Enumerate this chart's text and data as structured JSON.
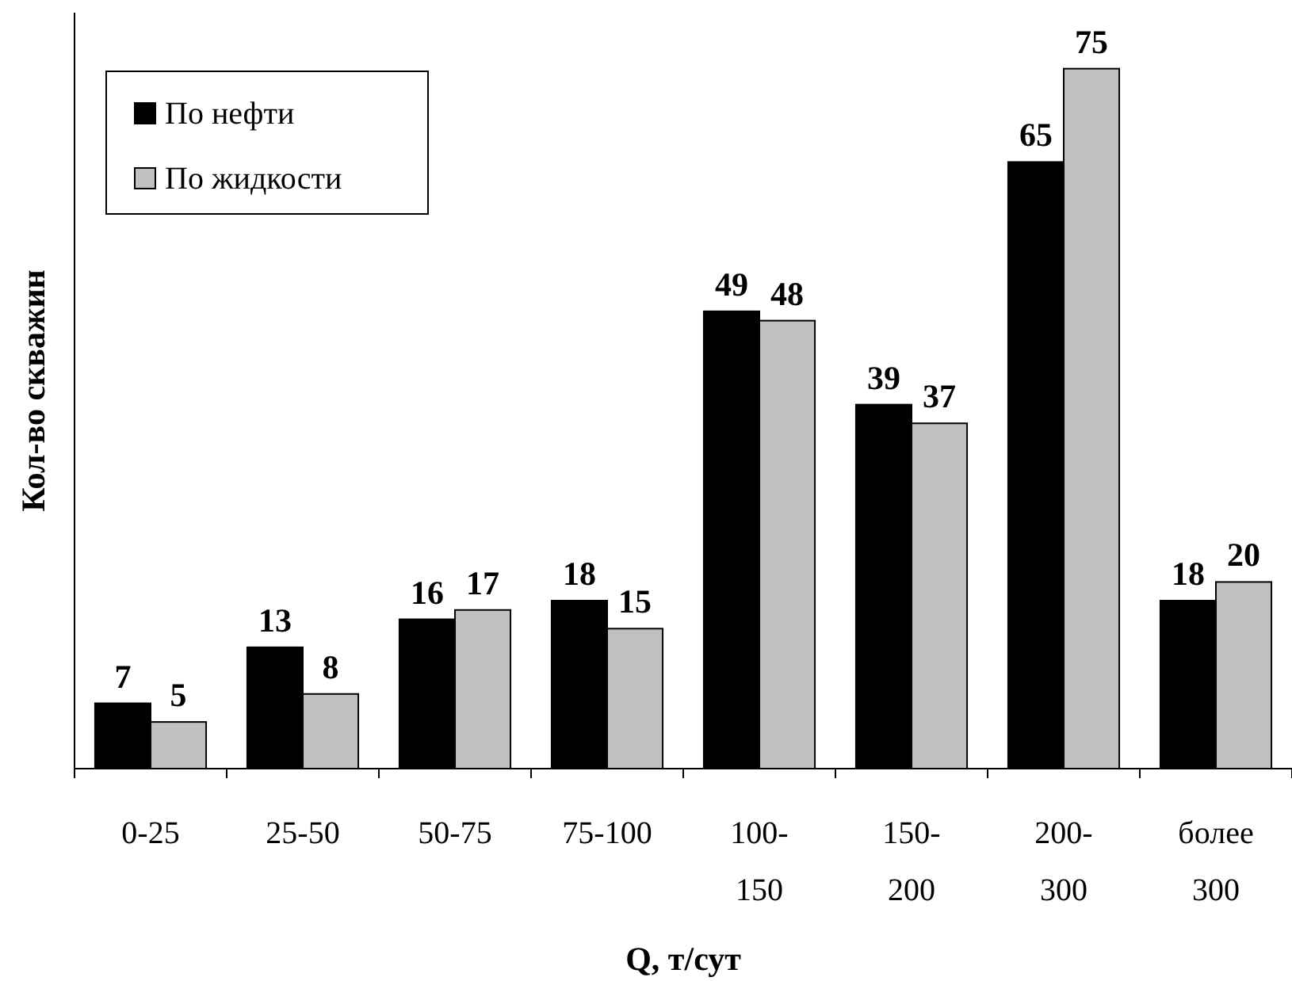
{
  "chart_data": {
    "type": "bar",
    "xlabel": "Q, т/сут",
    "ylabel": "Кол-во скважин",
    "categories": [
      "0-25",
      "25-50",
      "50-75",
      "75-100",
      "100-150",
      "150-200",
      "200-300",
      "более 300"
    ],
    "series": [
      {
        "name": "По нефти",
        "color": "#000000",
        "values": [
          7,
          13,
          16,
          18,
          49,
          39,
          65,
          18
        ]
      },
      {
        "name": "По жидкости",
        "color": "#c0c0c0",
        "values": [
          5,
          8,
          17,
          15,
          48,
          37,
          75,
          20
        ]
      }
    ],
    "ylim": [
      0,
      81
    ],
    "tick_labels": "x",
    "data_labels": true,
    "legend": "top left",
    "grid": false
  }
}
